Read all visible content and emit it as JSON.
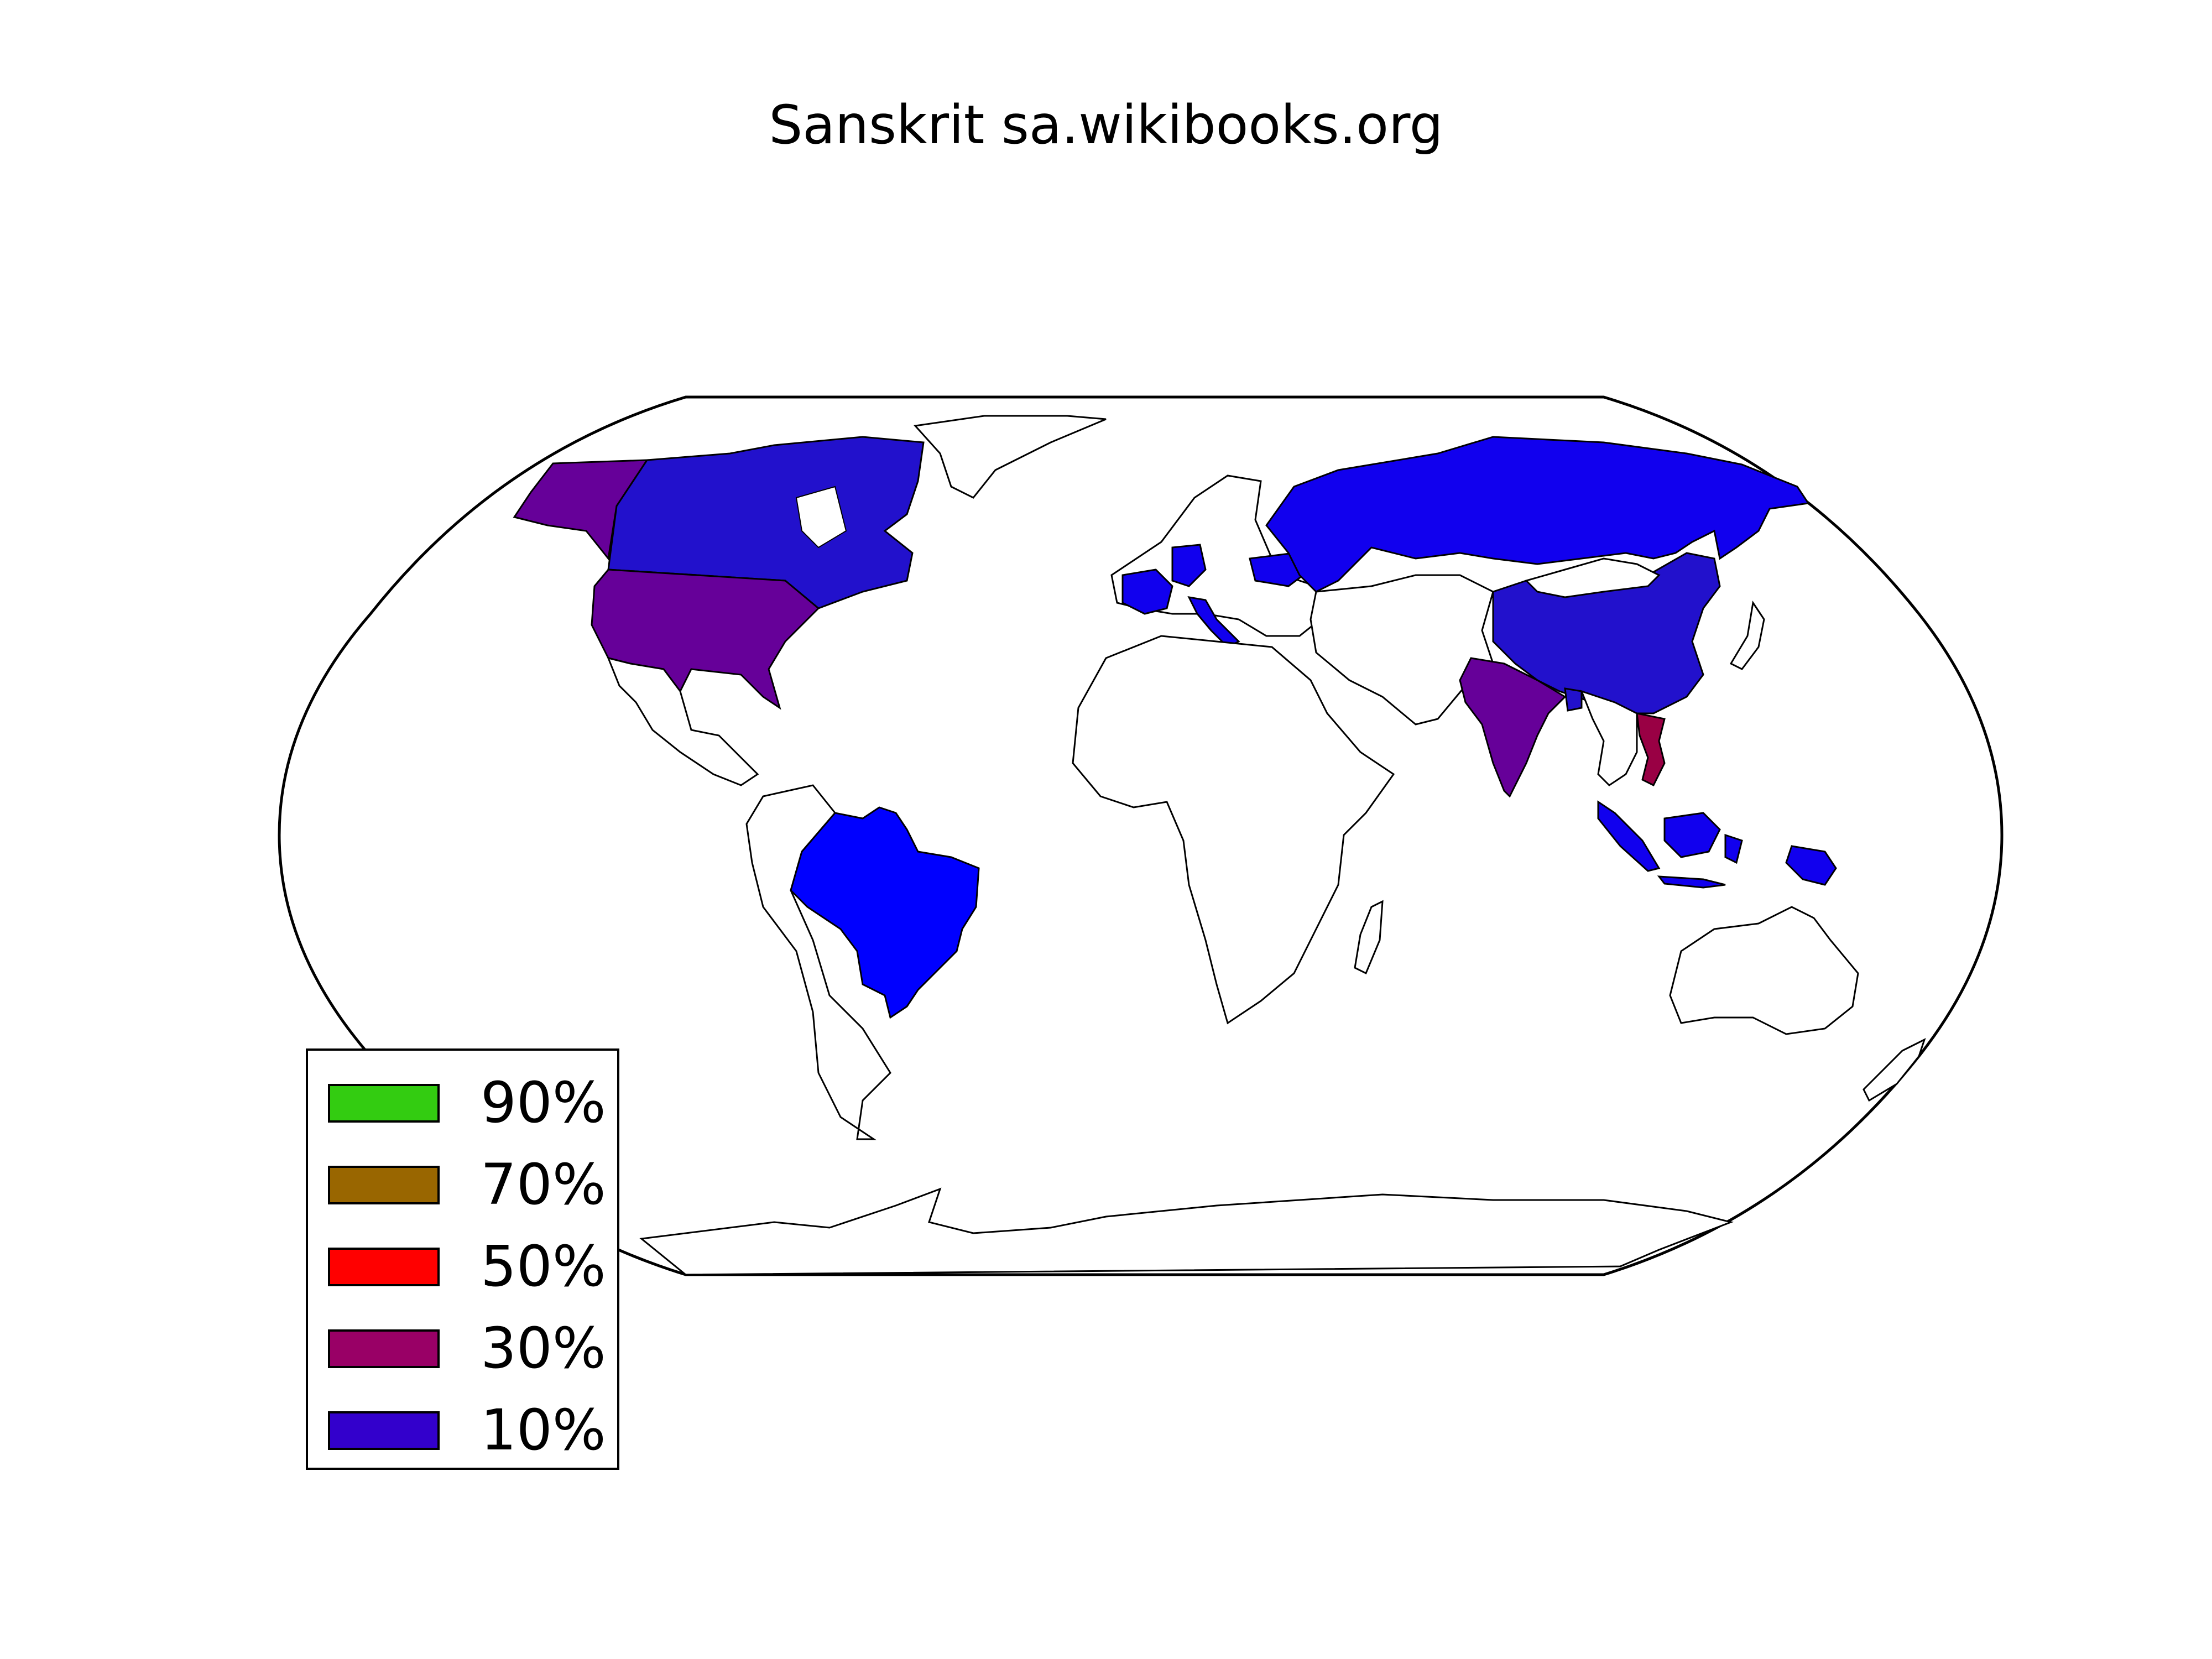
{
  "title": "Sanskrit sa.wikibooks.org",
  "map": {
    "projection": "robinson",
    "ocean_color": "#ffffff",
    "border_color": "#000000",
    "default_country_color": "#ffffff"
  },
  "legend": {
    "items": [
      {
        "label": "90%",
        "color": "#33cc11"
      },
      {
        "label": "70%",
        "color": "#996600"
      },
      {
        "label": "50%",
        "color": "#ff0000"
      },
      {
        "label": "30%",
        "color": "#990066"
      },
      {
        "label": "10%",
        "color": "#3300cc"
      }
    ]
  },
  "regions": [
    {
      "name": "Alaska (USA)",
      "color": "#660099"
    },
    {
      "name": "Canada",
      "color": "#2211cc"
    },
    {
      "name": "United States",
      "color": "#660099"
    },
    {
      "name": "Brazil",
      "color": "#0000ff"
    },
    {
      "name": "Russia",
      "color": "#1100ee"
    },
    {
      "name": "China",
      "color": "#2211cc"
    },
    {
      "name": "India",
      "color": "#660099"
    },
    {
      "name": "Vietnam",
      "color": "#990044"
    },
    {
      "name": "Indonesia",
      "color": "#1100ee"
    },
    {
      "name": "Papua New Guinea",
      "color": "#1100ee"
    },
    {
      "name": "France",
      "color": "#1100ee"
    },
    {
      "name": "Germany",
      "color": "#1100ee"
    },
    {
      "name": "Italy",
      "color": "#1100ee"
    },
    {
      "name": "Ukraine",
      "color": "#1100ee"
    },
    {
      "name": "Bangladesh",
      "color": "#2211cc"
    }
  ]
}
